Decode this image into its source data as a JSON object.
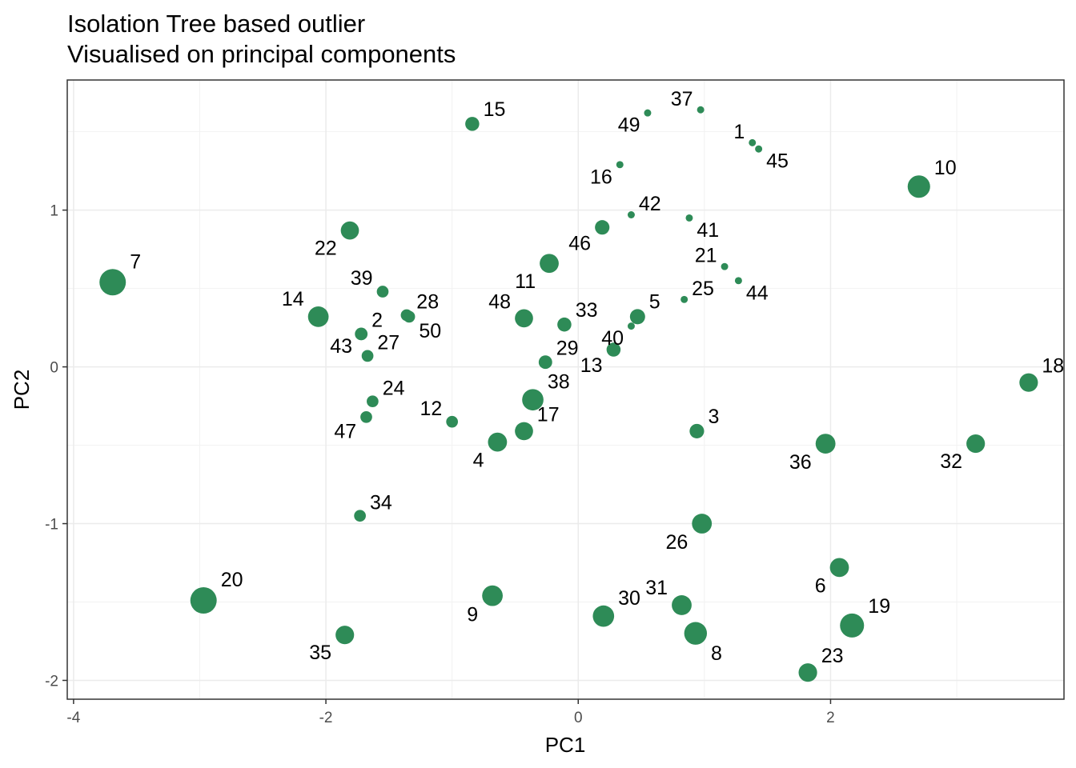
{
  "chart_data": {
    "type": "scatter",
    "title": "Isolation Tree based outlier",
    "subtitle": "Visualised on principal components",
    "xlabel": "PC1",
    "ylabel": "PC2",
    "xlim": [
      -4.05,
      3.85
    ],
    "ylim": [
      -2.12,
      1.83
    ],
    "xticks": [
      -4,
      -2,
      0,
      2
    ],
    "yticks": [
      -2,
      -1,
      0,
      1
    ],
    "xtick_labels": [
      "-4",
      "-2",
      "0",
      "2"
    ],
    "ytick_labels": [
      "-2",
      "-1",
      "0",
      "1"
    ],
    "grid": true,
    "point_color": "#2e8b57",
    "points": [
      {
        "label": "1",
        "x": 1.38,
        "y": 1.43,
        "size": 0.02,
        "label_pos": "tl"
      },
      {
        "label": "2",
        "x": -1.72,
        "y": 0.21,
        "size": 0.15,
        "label_pos": "tr"
      },
      {
        "label": "3",
        "x": 0.94,
        "y": -0.41,
        "size": 0.22,
        "label_pos": "tr"
      },
      {
        "label": "4",
        "x": -0.64,
        "y": -0.48,
        "size": 0.45,
        "label_pos": "bl"
      },
      {
        "label": "5",
        "x": 0.47,
        "y": 0.32,
        "size": 0.25,
        "label_pos": "tr"
      },
      {
        "label": "6",
        "x": 2.07,
        "y": -1.28,
        "size": 0.45,
        "label_pos": "bl"
      },
      {
        "label": "7",
        "x": -3.69,
        "y": 0.54,
        "size": 1.0,
        "label_pos": "tr"
      },
      {
        "label": "8",
        "x": 0.93,
        "y": -1.7,
        "size": 0.7,
        "label_pos": "br"
      },
      {
        "label": "9",
        "x": -0.68,
        "y": -1.46,
        "size": 0.55,
        "label_pos": "bl"
      },
      {
        "label": "10",
        "x": 2.7,
        "y": 1.15,
        "size": 0.68,
        "label_pos": "tr"
      },
      {
        "label": "11",
        "x": -0.23,
        "y": 0.66,
        "size": 0.45,
        "label_pos": "bl"
      },
      {
        "label": "12",
        "x": -1.0,
        "y": -0.35,
        "size": 0.12,
        "label_pos": "tl"
      },
      {
        "label": "13",
        "x": 0.28,
        "y": 0.11,
        "size": 0.2,
        "label_pos": "bl"
      },
      {
        "label": "14",
        "x": -2.06,
        "y": 0.32,
        "size": 0.55,
        "label_pos": "tl"
      },
      {
        "label": "15",
        "x": -0.84,
        "y": 1.55,
        "size": 0.2,
        "label_pos": "tr"
      },
      {
        "label": "16",
        "x": 0.33,
        "y": 1.29,
        "size": 0.02,
        "label_pos": "bl"
      },
      {
        "label": "17",
        "x": -0.43,
        "y": -0.41,
        "size": 0.4,
        "label_pos": "tr"
      },
      {
        "label": "18",
        "x": 3.57,
        "y": -0.1,
        "size": 0.42,
        "label_pos": "tr"
      },
      {
        "label": "19",
        "x": 2.17,
        "y": -1.65,
        "size": 0.8,
        "label_pos": "tr"
      },
      {
        "label": "20",
        "x": -2.97,
        "y": -1.49,
        "size": 1.0,
        "label_pos": "tr"
      },
      {
        "label": "21",
        "x": 1.16,
        "y": 0.64,
        "size": 0.02,
        "label_pos": "tl"
      },
      {
        "label": "22",
        "x": -1.81,
        "y": 0.87,
        "size": 0.4,
        "label_pos": "bl"
      },
      {
        "label": "23",
        "x": 1.82,
        "y": -1.95,
        "size": 0.42,
        "label_pos": "tr"
      },
      {
        "label": "24",
        "x": -1.63,
        "y": -0.22,
        "size": 0.12,
        "label_pos": "tr"
      },
      {
        "label": "25",
        "x": 0.84,
        "y": 0.43,
        "size": 0.02,
        "label_pos": "tr"
      },
      {
        "label": "26",
        "x": 0.98,
        "y": -1.0,
        "size": 0.5,
        "label_pos": "bl"
      },
      {
        "label": "27",
        "x": -1.67,
        "y": 0.07,
        "size": 0.12,
        "label_pos": "tr"
      },
      {
        "label": "28",
        "x": -1.36,
        "y": 0.33,
        "size": 0.12,
        "label_pos": "tr"
      },
      {
        "label": "29",
        "x": -0.26,
        "y": 0.03,
        "size": 0.18,
        "label_pos": "tr"
      },
      {
        "label": "30",
        "x": 0.2,
        "y": -1.59,
        "size": 0.6,
        "label_pos": "tr"
      },
      {
        "label": "31",
        "x": 0.82,
        "y": -1.52,
        "size": 0.5,
        "label_pos": "tl"
      },
      {
        "label": "32",
        "x": 3.15,
        "y": -0.49,
        "size": 0.42,
        "label_pos": "bl"
      },
      {
        "label": "33",
        "x": -0.11,
        "y": 0.27,
        "size": 0.2,
        "label_pos": "tr"
      },
      {
        "label": "34",
        "x": -1.73,
        "y": -0.95,
        "size": 0.12,
        "label_pos": "tr"
      },
      {
        "label": "35",
        "x": -1.85,
        "y": -1.71,
        "size": 0.42,
        "label_pos": "bl"
      },
      {
        "label": "36",
        "x": 1.96,
        "y": -0.49,
        "size": 0.5,
        "label_pos": "bl"
      },
      {
        "label": "37",
        "x": 0.97,
        "y": 1.64,
        "size": 0.02,
        "label_pos": "tl"
      },
      {
        "label": "38",
        "x": -0.36,
        "y": -0.21,
        "size": 0.6,
        "label_pos": "tr"
      },
      {
        "label": "39",
        "x": -1.55,
        "y": 0.48,
        "size": 0.12,
        "label_pos": "tl"
      },
      {
        "label": "40",
        "x": 0.42,
        "y": 0.26,
        "size": 0.02,
        "label_pos": "bl"
      },
      {
        "label": "41",
        "x": 0.88,
        "y": 0.95,
        "size": 0.02,
        "label_pos": "br"
      },
      {
        "label": "42",
        "x": 0.42,
        "y": 0.97,
        "size": 0.02,
        "label_pos": "tr"
      },
      {
        "label": "43",
        "x": -1.73,
        "y": 0.21,
        "size": 0.02,
        "label_pos": "bl"
      },
      {
        "label": "44",
        "x": 1.27,
        "y": 0.55,
        "size": 0.02,
        "label_pos": "br"
      },
      {
        "label": "45",
        "x": 1.43,
        "y": 1.39,
        "size": 0.02,
        "label_pos": "br"
      },
      {
        "label": "46",
        "x": 0.19,
        "y": 0.89,
        "size": 0.22,
        "label_pos": "bl"
      },
      {
        "label": "47",
        "x": -1.68,
        "y": -0.32,
        "size": 0.12,
        "label_pos": "bl"
      },
      {
        "label": "48",
        "x": -0.43,
        "y": 0.31,
        "size": 0.4,
        "label_pos": "tl"
      },
      {
        "label": "49",
        "x": 0.55,
        "y": 1.62,
        "size": 0.02,
        "label_pos": "bl"
      },
      {
        "label": "50",
        "x": -1.34,
        "y": 0.32,
        "size": 0.12,
        "label_pos": "br"
      }
    ]
  }
}
